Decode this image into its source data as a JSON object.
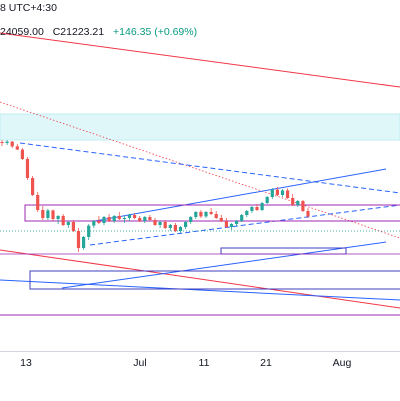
{
  "header": {
    "interval_tz": "8 UTC+4:30",
    "ohlc_prefix": "24059.00",
    "close_label": "C21223.21",
    "change": "+146.35 (+0.69%)"
  },
  "x_axis": {
    "labels": [
      "13",
      "Jul",
      "11",
      "21",
      "Aug"
    ]
  },
  "colors": {
    "up_candle": "#26a69a",
    "down_candle": "#ef5350",
    "red_trendline": "#f23645",
    "blue_trendline": "#2962ff",
    "purple_box": "#9c27b0",
    "navy_box": "#3f3fbf",
    "cyan_zone": "#e0f7fa",
    "price_dotted": "#089981"
  },
  "chart_data": {
    "type": "candlestick",
    "title": "",
    "xlabel": "",
    "ylabel": "",
    "x_tick_labels": [
      "13",
      "Jul",
      "11",
      "21",
      "Aug"
    ],
    "last_close": 21223.21,
    "change": 146.35,
    "change_pct": 0.69,
    "series": [
      {
        "values": [
          [
            0.79,
            0.8,
            0.77,
            0.785
          ],
          [
            0.785,
            0.8,
            0.775,
            0.792
          ],
          [
            0.792,
            0.795,
            0.76,
            0.768
          ],
          [
            0.768,
            0.78,
            0.75,
            0.752
          ],
          [
            0.752,
            0.76,
            0.7,
            0.705
          ],
          [
            0.705,
            0.715,
            0.6,
            0.61
          ],
          [
            0.61,
            0.62,
            0.52,
            0.525
          ],
          [
            0.525,
            0.54,
            0.44,
            0.45
          ],
          [
            0.45,
            0.47,
            0.4,
            0.41
          ],
          [
            0.41,
            0.455,
            0.4,
            0.448
          ],
          [
            0.448,
            0.452,
            0.395,
            0.405
          ],
          [
            0.405,
            0.425,
            0.38,
            0.42
          ],
          [
            0.42,
            0.43,
            0.37,
            0.375
          ],
          [
            0.375,
            0.395,
            0.36,
            0.39
          ],
          [
            0.39,
            0.4,
            0.34,
            0.345
          ],
          [
            0.345,
            0.36,
            0.24,
            0.26
          ],
          [
            0.26,
            0.32,
            0.25,
            0.315
          ],
          [
            0.315,
            0.38,
            0.3,
            0.372
          ],
          [
            0.372,
            0.4,
            0.36,
            0.395
          ],
          [
            0.395,
            0.42,
            0.38,
            0.385
          ],
          [
            0.385,
            0.42,
            0.375,
            0.415
          ],
          [
            0.415,
            0.43,
            0.39,
            0.395
          ],
          [
            0.395,
            0.425,
            0.385,
            0.42
          ],
          [
            0.42,
            0.44,
            0.4,
            0.405
          ],
          [
            0.405,
            0.42,
            0.385,
            0.41
          ],
          [
            0.41,
            0.43,
            0.395,
            0.425
          ],
          [
            0.425,
            0.435,
            0.405,
            0.41
          ],
          [
            0.41,
            0.42,
            0.39,
            0.395
          ],
          [
            0.395,
            0.42,
            0.385,
            0.415
          ],
          [
            0.415,
            0.425,
            0.395,
            0.4
          ],
          [
            0.4,
            0.41,
            0.37,
            0.375
          ],
          [
            0.375,
            0.395,
            0.36,
            0.39
          ],
          [
            0.39,
            0.4,
            0.355,
            0.36
          ],
          [
            0.36,
            0.38,
            0.345,
            0.375
          ],
          [
            0.375,
            0.385,
            0.34,
            0.345
          ],
          [
            0.345,
            0.37,
            0.335,
            0.365
          ],
          [
            0.365,
            0.395,
            0.355,
            0.39
          ],
          [
            0.39,
            0.42,
            0.38,
            0.415
          ],
          [
            0.415,
            0.445,
            0.405,
            0.44
          ],
          [
            0.44,
            0.45,
            0.41,
            0.418
          ],
          [
            0.418,
            0.445,
            0.41,
            0.44
          ],
          [
            0.44,
            0.46,
            0.425,
            0.43
          ],
          [
            0.43,
            0.445,
            0.405,
            0.41
          ],
          [
            0.41,
            0.425,
            0.39,
            0.395
          ],
          [
            0.395,
            0.41,
            0.36,
            0.365
          ],
          [
            0.365,
            0.385,
            0.35,
            0.38
          ],
          [
            0.38,
            0.4,
            0.365,
            0.395
          ],
          [
            0.395,
            0.43,
            0.39,
            0.425
          ],
          [
            0.425,
            0.45,
            0.415,
            0.445
          ],
          [
            0.445,
            0.47,
            0.435,
            0.465
          ],
          [
            0.465,
            0.48,
            0.445,
            0.45
          ],
          [
            0.45,
            0.49,
            0.445,
            0.485
          ],
          [
            0.485,
            0.52,
            0.48,
            0.515
          ],
          [
            0.515,
            0.56,
            0.505,
            0.552
          ],
          [
            0.552,
            0.565,
            0.52,
            0.525
          ],
          [
            0.525,
            0.555,
            0.515,
            0.548
          ],
          [
            0.548,
            0.558,
            0.505,
            0.51
          ],
          [
            0.51,
            0.53,
            0.47,
            0.475
          ],
          [
            0.475,
            0.5,
            0.465,
            0.495
          ],
          [
            0.495,
            0.5,
            0.44,
            0.445
          ],
          [
            0.445,
            0.46,
            0.41,
            0.418
          ]
        ]
      }
    ]
  }
}
